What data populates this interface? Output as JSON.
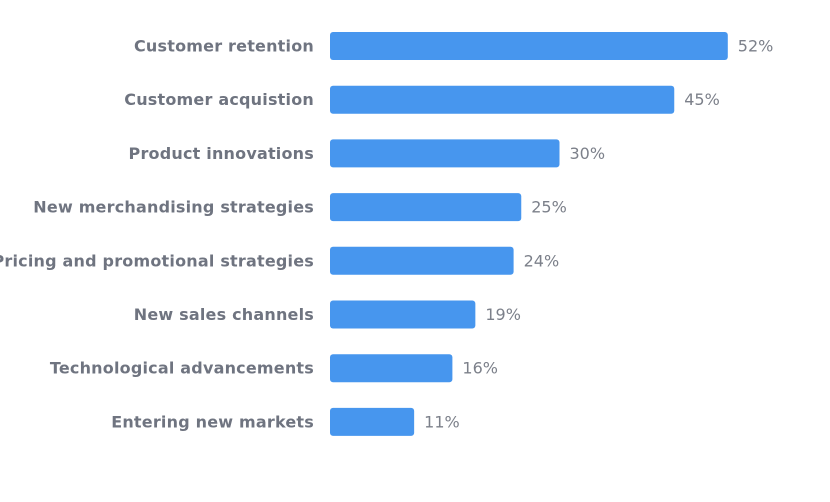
{
  "chart_data": {
    "type": "bar",
    "orientation": "horizontal",
    "categories": [
      "Customer retention",
      "Customer acquistion",
      "Product innovations",
      "New merchandising strategies",
      "Pricing and promotional strategies",
      "New sales channels",
      "Technological advancements",
      "Entering new markets"
    ],
    "values": [
      52,
      45,
      30,
      25,
      24,
      19,
      16,
      11
    ],
    "value_labels": [
      "52%",
      "45%",
      "30%",
      "25%",
      "24%",
      "19%",
      "16%",
      "11%"
    ],
    "color": "#4796ee"
  }
}
